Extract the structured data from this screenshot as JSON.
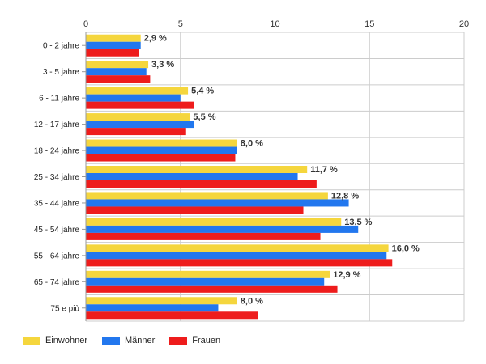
{
  "chart_data": {
    "type": "bar",
    "orientation": "horizontal",
    "categories": [
      "0 - 2 jahre",
      "3 - 5 jahre",
      "6 - 11 jahre",
      "12 - 17 jahre",
      "18 - 24 jahre",
      "25 - 34 jahre",
      "35 - 44 jahre",
      "45 - 54 jahre",
      "55 - 64 jahre",
      "65 - 74 jahre",
      "75 e più"
    ],
    "series": [
      {
        "name": "Einwohner",
        "color": "#f5d63d",
        "values": [
          2.9,
          3.3,
          5.4,
          5.5,
          8.0,
          11.7,
          12.8,
          13.5,
          16.0,
          12.9,
          8.0
        ]
      },
      {
        "name": "Männer",
        "color": "#2277ee",
        "values": [
          2.9,
          3.2,
          5.0,
          5.7,
          8.0,
          11.2,
          13.9,
          14.4,
          15.9,
          12.6,
          7.0
        ]
      },
      {
        "name": "Frauen",
        "color": "#ee1c1c",
        "values": [
          2.8,
          3.4,
          5.7,
          5.3,
          7.9,
          12.2,
          11.5,
          12.4,
          16.2,
          13.3,
          9.1
        ]
      }
    ],
    "data_labels": [
      "2,9 %",
      "3,3 %",
      "5,4 %",
      "5,5 %",
      "8,0 %",
      "11,7 %",
      "12,8 %",
      "13,5 %",
      "16,0 %",
      "12,9 %",
      "8,0 %"
    ],
    "x_ticks": [
      "0",
      "5",
      "10",
      "15",
      "20"
    ],
    "xlim": [
      0,
      20
    ],
    "x_axis_position": "top",
    "grid": true,
    "legend_position": "bottom-left"
  }
}
